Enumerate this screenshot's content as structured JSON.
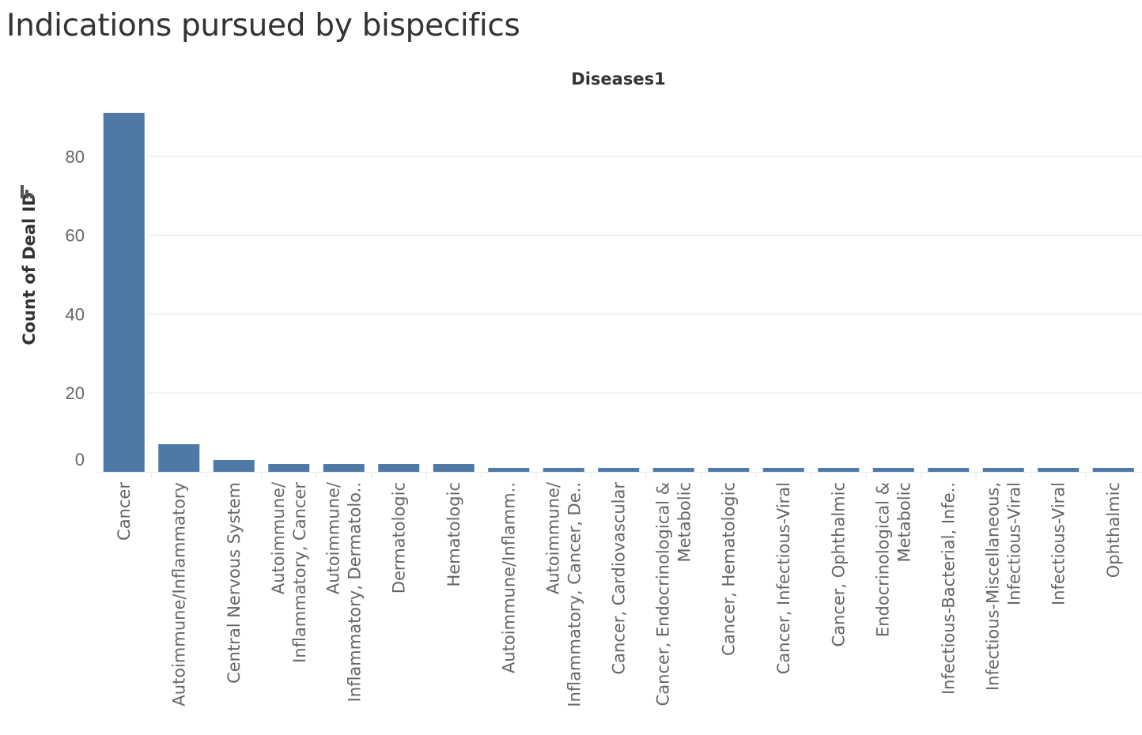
{
  "title": "Indications pursued by bispecifics",
  "sort_icon": "sort-descending-icon",
  "chart_data": {
    "type": "bar",
    "title": "Indications pursued by bispecifics",
    "column_header": "Diseases1",
    "ylabel": "Count of Deal ID",
    "xlabel": "Diseases1",
    "ylim": [
      0,
      95
    ],
    "yticks": [
      0,
      20,
      40,
      60,
      80
    ],
    "grid": true,
    "color": "#4e79a7",
    "categories": [
      {
        "name": "Cancer",
        "lines": [
          "Cancer"
        ]
      },
      {
        "name": "Autoimmune/Inflammatory",
        "lines": [
          "Autoimmune/Inflammatory"
        ]
      },
      {
        "name": "Central Nervous System",
        "lines": [
          "Central Nervous System"
        ]
      },
      {
        "name": "Autoimmune/Inflammatory, Cancer",
        "lines": [
          "Autoimmune/",
          "Inflammatory, Cancer"
        ]
      },
      {
        "name": "Autoimmune/Inflammatory, Dermatolo..",
        "lines": [
          "Autoimmune/",
          "Inflammatory, Dermatolo.."
        ]
      },
      {
        "name": "Dermatologic",
        "lines": [
          "Dermatologic"
        ]
      },
      {
        "name": "Hematologic",
        "lines": [
          "Hematologic"
        ]
      },
      {
        "name": "Autoimmune/Inflamm..",
        "lines": [
          "Autoimmune/Inflamm.."
        ]
      },
      {
        "name": "Autoimmune/Inflammatory, Cancer, De..",
        "lines": [
          "Autoimmune/",
          "Inflammatory, Cancer, De.."
        ]
      },
      {
        "name": "Cancer, Cardiovascular",
        "lines": [
          "Cancer, Cardiovascular"
        ]
      },
      {
        "name": "Cancer, Endocrinological & Metabolic",
        "lines": [
          "Cancer, Endocrinological &",
          "Metabolic"
        ]
      },
      {
        "name": "Cancer, Hematologic",
        "lines": [
          "Cancer, Hematologic"
        ]
      },
      {
        "name": "Cancer, Infectious-Viral",
        "lines": [
          "Cancer, Infectious-Viral"
        ]
      },
      {
        "name": "Cancer, Ophthalmic",
        "lines": [
          "Cancer, Ophthalmic"
        ]
      },
      {
        "name": "Endocrinological & Metabolic",
        "lines": [
          "Endocrinological &",
          "Metabolic"
        ]
      },
      {
        "name": "Infectious-Bacterial, Infe..",
        "lines": [
          "Infectious-Bacterial, Infe.."
        ]
      },
      {
        "name": "Infectious-Miscellaneous, Infectious-Viral",
        "lines": [
          "Infectious-Miscellaneous,",
          "Infectious-Viral"
        ]
      },
      {
        "name": "Infectious-Viral",
        "lines": [
          "Infectious-Viral"
        ]
      },
      {
        "name": "Ophthalmic",
        "lines": [
          "Ophthalmic"
        ]
      }
    ],
    "values": [
      91,
      7,
      3,
      2,
      2,
      2,
      2,
      1,
      1,
      1,
      1,
      1,
      1,
      1,
      1,
      1,
      1,
      1,
      1
    ]
  }
}
